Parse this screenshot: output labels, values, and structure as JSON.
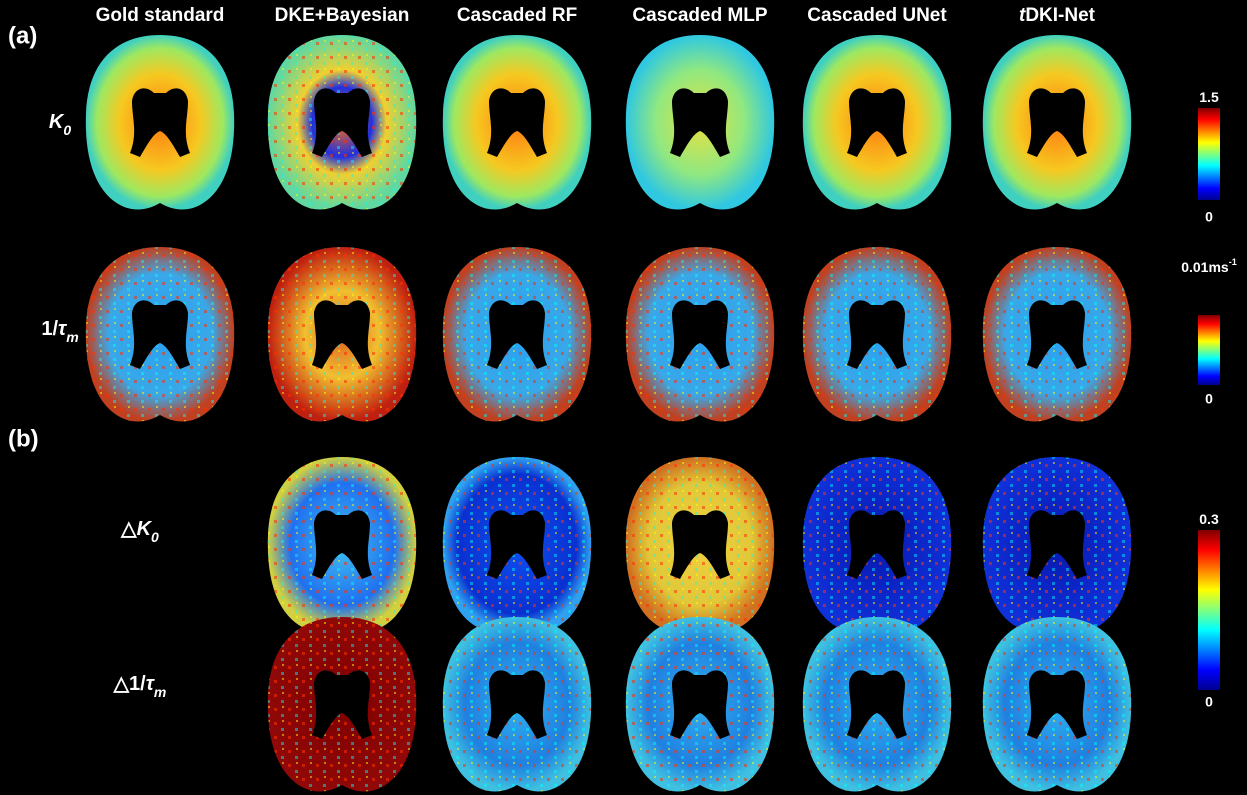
{
  "panels": [
    "(a)",
    "(b)"
  ],
  "columns": [
    [
      {
        "text": "Gold standard"
      }
    ],
    [
      {
        "text": "DKE+Bayesian"
      }
    ],
    [
      {
        "text": "Cascaded RF"
      }
    ],
    [
      {
        "text": "Cascaded MLP"
      }
    ],
    [
      {
        "text": "Cascaded UNet"
      }
    ],
    [
      {
        "text": "t",
        "italic": true
      },
      {
        "text": "DKI-Net"
      }
    ]
  ],
  "rows": [
    [
      {
        "text": "K",
        "italic": true
      },
      {
        "text": "0",
        "italic": true,
        "sub": true
      }
    ],
    [
      {
        "text": "1/"
      },
      {
        "text": "τ",
        "italic": true
      },
      {
        "text": "m",
        "italic": true,
        "sub": true
      }
    ],
    [
      {
        "text": "△"
      },
      {
        "text": "K",
        "italic": true
      },
      {
        "text": "0",
        "italic": true,
        "sub": true
      }
    ],
    [
      {
        "text": "△1/"
      },
      {
        "text": "τ",
        "italic": true
      },
      {
        "text": "m",
        "italic": true,
        "sub": true
      }
    ]
  ],
  "colorbars": [
    {
      "top": [
        {
          "text": "1.5"
        }
      ],
      "bottom": "0"
    },
    {
      "top": [
        {
          "text": "0.01ms"
        },
        {
          "text": "-1",
          "sup": true
        }
      ],
      "bottom": "0"
    },
    {
      "top": [
        {
          "text": "0.3"
        }
      ],
      "bottom": "0"
    }
  ]
}
